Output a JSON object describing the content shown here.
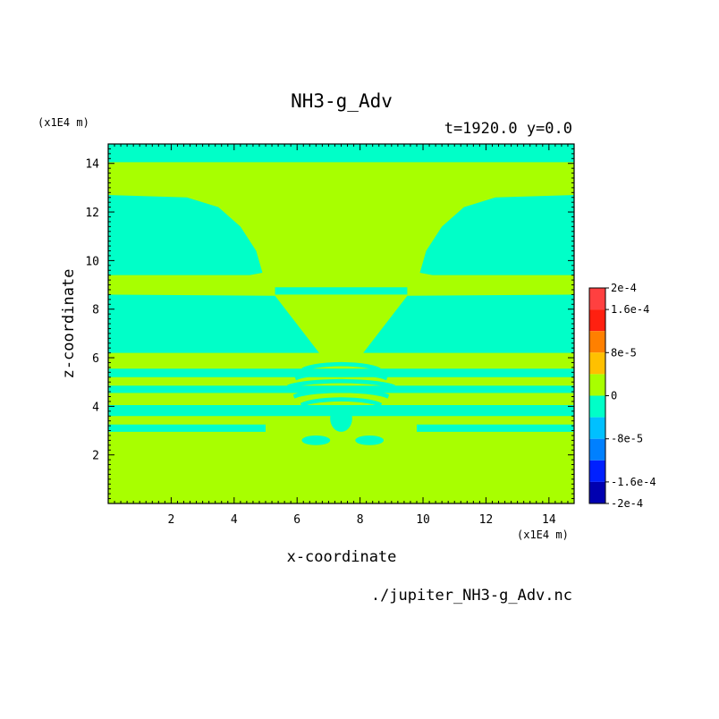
{
  "chart_data": {
    "type": "heatmap",
    "title": "NH3-g_Adv",
    "subtitle": "t=1920.0 y=0.0",
    "xlabel": "x-coordinate",
    "ylabel": "z-coordinate",
    "x_unit": "(x1E4 m)",
    "y_unit": "(x1E4 m)",
    "xlim": [
      0.0,
      14.8
    ],
    "ylim": [
      0.0,
      14.8
    ],
    "x_ticks": [
      2,
      4,
      6,
      8,
      10,
      12,
      14
    ],
    "y_ticks": [
      2,
      4,
      6,
      8,
      10,
      12,
      14
    ],
    "source": "./jupiter_NH3-g_Adv.nc",
    "colorbar": {
      "labels": [
        "2e-4",
        "1.6e-4",
        "8e-5",
        "0",
        "-8e-5",
        "-1.6e-4",
        "-2e-4"
      ],
      "label_values": [
        0.0002,
        0.00016,
        8e-05,
        0,
        -8e-05,
        -0.00016,
        -0.0002
      ],
      "range": [
        -0.0002,
        0.0002
      ],
      "levels": [
        {
          "from": 0.00016,
          "to": 0.0002,
          "color": "#ff4040"
        },
        {
          "from": 0.00012,
          "to": 0.00016,
          "color": "#ff2010"
        },
        {
          "from": 8e-05,
          "to": 0.00012,
          "color": "#ff8000"
        },
        {
          "from": 4e-05,
          "to": 8e-05,
          "color": "#ffc000"
        },
        {
          "from": 0,
          "to": 4e-05,
          "color": "#a8ff00"
        },
        {
          "from": -4e-05,
          "to": 0,
          "color": "#00ffc8"
        },
        {
          "from": -8e-05,
          "to": -4e-05,
          "color": "#00c0ff"
        },
        {
          "from": -0.00012,
          "to": -8e-05,
          "color": "#0080ff"
        },
        {
          "from": -0.00016,
          "to": -0.00012,
          "color": "#0020ff"
        },
        {
          "from": -0.0002,
          "to": -0.00016,
          "color": "#0000b0"
        }
      ]
    },
    "background_level_color": "#a8ff00",
    "negative_level_color": "#00ffc8",
    "negative_regions": [
      {
        "kind": "rect",
        "x": [
          0.0,
          14.8
        ],
        "z": [
          14.05,
          14.8
        ]
      },
      {
        "kind": "poly",
        "points": [
          [
            0,
            12.7
          ],
          [
            2.5,
            12.6
          ],
          [
            3.5,
            12.2
          ],
          [
            4.2,
            11.4
          ],
          [
            4.7,
            10.4
          ],
          [
            4.9,
            9.5
          ],
          [
            4.5,
            9.4
          ],
          [
            0,
            9.4
          ]
        ]
      },
      {
        "kind": "poly",
        "points": [
          [
            14.8,
            12.7
          ],
          [
            12.3,
            12.6
          ],
          [
            11.3,
            12.2
          ],
          [
            10.6,
            11.4
          ],
          [
            10.1,
            10.4
          ],
          [
            9.9,
            9.5
          ],
          [
            10.3,
            9.4
          ],
          [
            14.8,
            9.4
          ]
        ]
      },
      {
        "kind": "poly",
        "points": [
          [
            0,
            8.6
          ],
          [
            5.3,
            8.55
          ],
          [
            6.7,
            6.2
          ],
          [
            0,
            6.2
          ]
        ]
      },
      {
        "kind": "poly",
        "points": [
          [
            14.8,
            8.6
          ],
          [
            9.5,
            8.55
          ],
          [
            8.1,
            6.2
          ],
          [
            14.8,
            6.2
          ]
        ]
      },
      {
        "kind": "rect",
        "x": [
          5.3,
          9.5
        ],
        "z": [
          8.6,
          8.9
        ]
      },
      {
        "kind": "rect",
        "x": [
          0.0,
          14.8
        ],
        "z": [
          5.2,
          5.55
        ]
      },
      {
        "kind": "rect",
        "x": [
          0.0,
          14.8
        ],
        "z": [
          4.55,
          4.85
        ]
      },
      {
        "kind": "rect",
        "x": [
          0.0,
          14.8
        ],
        "z": [
          3.6,
          4.05
        ]
      },
      {
        "kind": "rect",
        "x": [
          0.0,
          5.0
        ],
        "z": [
          2.95,
          3.25
        ]
      },
      {
        "kind": "rect",
        "x": [
          9.8,
          14.8
        ],
        "z": [
          2.95,
          3.25
        ]
      },
      {
        "kind": "ring",
        "cx": 7.4,
        "cz": 5.7,
        "rx": 1.3,
        "rz": 0.12
      },
      {
        "kind": "ring",
        "cx": 7.4,
        "cz": 5.35,
        "rx": 1.55,
        "rz": 0.12
      },
      {
        "kind": "ring",
        "cx": 7.4,
        "cz": 5.0,
        "rx": 1.8,
        "rz": 0.12
      },
      {
        "kind": "ring",
        "cx": 7.4,
        "cz": 4.6,
        "rx": 1.6,
        "rz": 0.12
      },
      {
        "kind": "ring",
        "cx": 7.4,
        "cz": 4.25,
        "rx": 1.35,
        "rz": 0.12
      },
      {
        "kind": "ellipse",
        "cx": 7.4,
        "cz": 3.5,
        "rx": 0.35,
        "rz": 0.55
      },
      {
        "kind": "ellipse",
        "cx": 6.6,
        "cz": 2.6,
        "rx": 0.45,
        "rz": 0.2
      },
      {
        "kind": "ellipse",
        "cx": 8.3,
        "cz": 2.6,
        "rx": 0.45,
        "rz": 0.2
      }
    ]
  }
}
